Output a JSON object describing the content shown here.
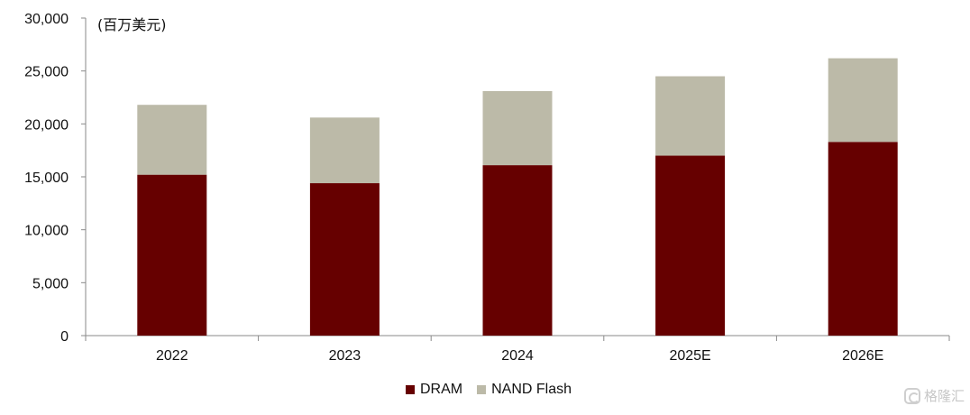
{
  "unit_label": "(百万美元)",
  "watermark": {
    "text": "格隆汇",
    "icon": "gelonghui-logo-icon"
  },
  "colors": {
    "dram": "#660000",
    "nand": "#BCBAA8",
    "axis": "#8a8a8a",
    "text": "#111111"
  },
  "chart_data": {
    "type": "bar",
    "stacked": true,
    "categories": [
      "2022",
      "2023",
      "2024",
      "2025E",
      "2026E"
    ],
    "series": [
      {
        "name": "DRAM",
        "values": [
          15200,
          14400,
          16100,
          17000,
          18300
        ]
      },
      {
        "name": "NAND Flash",
        "values": [
          6600,
          6200,
          7000,
          7500,
          7900
        ]
      }
    ],
    "ylim": [
      0,
      30000
    ],
    "yticks": [
      0,
      5000,
      10000,
      15000,
      20000,
      25000,
      30000
    ],
    "ytick_labels": [
      "0",
      "5,000",
      "10,000",
      "15,000",
      "20,000",
      "25,000",
      "30,000"
    ],
    "grid": false,
    "legend_position": "bottom-center"
  }
}
